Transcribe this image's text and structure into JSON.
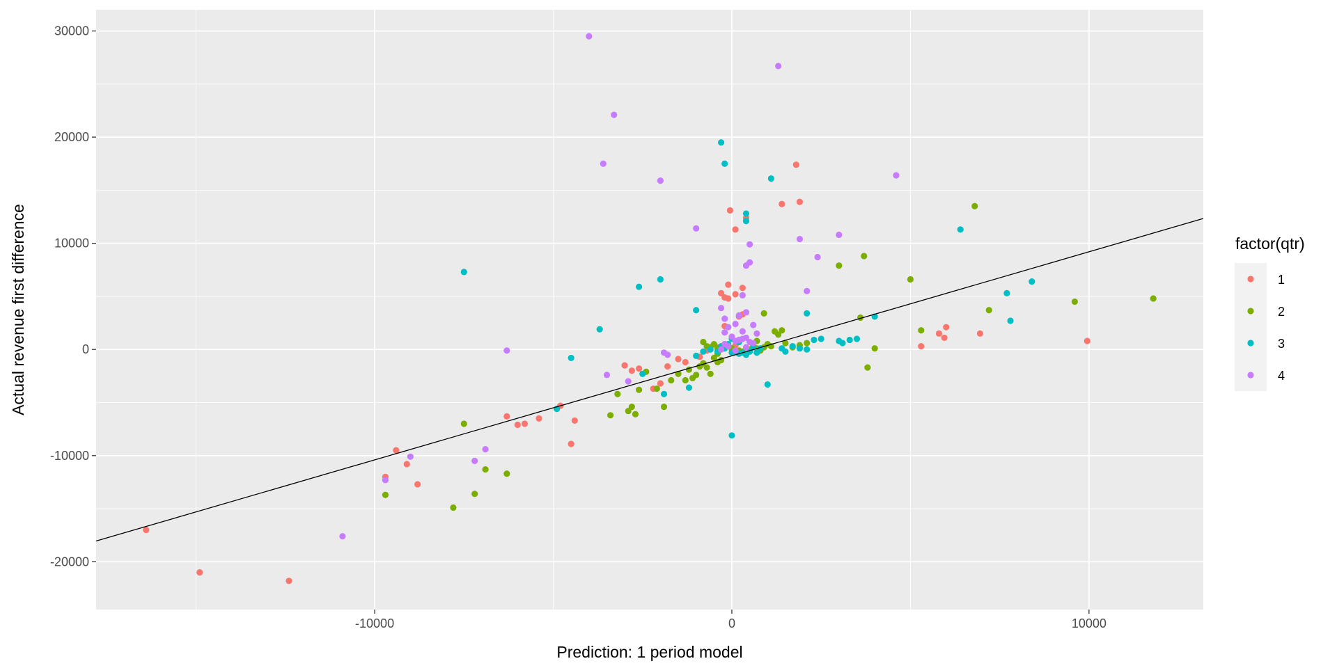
{
  "chart_data": {
    "type": "scatter",
    "title": "",
    "xlabel": "Prediction: 1 period model",
    "ylabel": "Actual revenue first difference",
    "xlim": [
      -17800,
      13200
    ],
    "ylim": [
      -24500,
      32000
    ],
    "x_ticks": [
      -10000,
      0,
      10000
    ],
    "x_tick_labels": [
      "-10000",
      "0",
      "10000"
    ],
    "y_ticks": [
      -20000,
      -10000,
      0,
      10000,
      20000,
      30000
    ],
    "y_tick_labels": [
      "-20000",
      "-10000",
      "0",
      "10000",
      "20000",
      "30000"
    ],
    "grid": true,
    "background": "#ebebeb",
    "fit_line": {
      "slope": 0.98,
      "intercept": -600,
      "color": "#000000"
    },
    "legend": {
      "title": "factor(qtr)",
      "placement": "right"
    },
    "series": [
      {
        "name": "1",
        "color": "#F8766D",
        "points": [
          [
            -16400,
            -17000
          ],
          [
            -14900,
            -21000
          ],
          [
            -12400,
            -21800
          ],
          [
            -9700,
            -12000
          ],
          [
            -9400,
            -9500
          ],
          [
            -9100,
            -10800
          ],
          [
            -8800,
            -12700
          ],
          [
            -6300,
            -6300
          ],
          [
            -6000,
            -7100
          ],
          [
            -5800,
            -7000
          ],
          [
            -5400,
            -6500
          ],
          [
            -4800,
            -5300
          ],
          [
            -4500,
            -8900
          ],
          [
            -4400,
            -6700
          ],
          [
            -3000,
            -1500
          ],
          [
            -2800,
            -2000
          ],
          [
            -2600,
            -1800
          ],
          [
            -2200,
            -3700
          ],
          [
            -2000,
            -3200
          ],
          [
            -1800,
            -1600
          ],
          [
            -1500,
            -900
          ],
          [
            -1300,
            -1200
          ],
          [
            -900,
            -700
          ],
          [
            -700,
            -100
          ],
          [
            -400,
            200
          ],
          [
            -300,
            0
          ],
          [
            -200,
            500
          ],
          [
            -100,
            300
          ],
          [
            0,
            0
          ],
          [
            100,
            400
          ],
          [
            200,
            700
          ],
          [
            -200,
            4900
          ],
          [
            -300,
            5300
          ],
          [
            -100,
            6100
          ],
          [
            100,
            5200
          ],
          [
            300,
            5800
          ],
          [
            200,
            3100
          ],
          [
            300,
            3300
          ],
          [
            -100,
            4800
          ],
          [
            -200,
            2200
          ],
          [
            -50,
            13100
          ],
          [
            100,
            11300
          ],
          [
            400,
            12400
          ],
          [
            1400,
            13700
          ],
          [
            1800,
            17400
          ],
          [
            1900,
            13900
          ],
          [
            5300,
            300
          ],
          [
            5800,
            1500
          ],
          [
            5950,
            1100
          ],
          [
            6000,
            2100
          ],
          [
            6950,
            1500
          ],
          [
            9950,
            800
          ]
        ]
      },
      {
        "name": "2",
        "color": "#7CAE00",
        "points": [
          [
            -9700,
            -13700
          ],
          [
            -7800,
            -14900
          ],
          [
            -7500,
            -7000
          ],
          [
            -7200,
            -13600
          ],
          [
            -6900,
            -11300
          ],
          [
            -6300,
            -11700
          ],
          [
            -3400,
            -6200
          ],
          [
            -3200,
            -4200
          ],
          [
            -2900,
            -5800
          ],
          [
            -2800,
            -5400
          ],
          [
            -2700,
            -6100
          ],
          [
            -2600,
            -3800
          ],
          [
            -2400,
            -2100
          ],
          [
            -2100,
            -3700
          ],
          [
            -1900,
            -5400
          ],
          [
            -1700,
            -2900
          ],
          [
            -1500,
            -2300
          ],
          [
            -1300,
            -2900
          ],
          [
            -1200,
            -1900
          ],
          [
            -1100,
            -2700
          ],
          [
            -1000,
            -2400
          ],
          [
            -900,
            -1600
          ],
          [
            -800,
            -1300
          ],
          [
            -700,
            -1700
          ],
          [
            -600,
            -2300
          ],
          [
            -500,
            -800
          ],
          [
            -400,
            -1200
          ],
          [
            -300,
            -1000
          ],
          [
            -800,
            700
          ],
          [
            -700,
            300
          ],
          [
            -600,
            200
          ],
          [
            -500,
            500
          ],
          [
            -400,
            100
          ],
          [
            -200,
            200
          ],
          [
            0,
            100
          ],
          [
            200,
            -100
          ],
          [
            300,
            -200
          ],
          [
            500,
            0
          ],
          [
            600,
            300
          ],
          [
            700,
            100
          ],
          [
            800,
            -100
          ],
          [
            900,
            200
          ],
          [
            1000,
            500
          ],
          [
            1100,
            300
          ],
          [
            1200,
            1700
          ],
          [
            1300,
            1400
          ],
          [
            1400,
            1800
          ],
          [
            1500,
            600
          ],
          [
            1700,
            200
          ],
          [
            1900,
            400
          ],
          [
            2100,
            600
          ],
          [
            900,
            3400
          ],
          [
            3000,
            7900
          ],
          [
            3600,
            3000
          ],
          [
            3700,
            8800
          ],
          [
            3800,
            -1700
          ],
          [
            4000,
            100
          ],
          [
            5000,
            6600
          ],
          [
            5300,
            1800
          ],
          [
            6800,
            13500
          ],
          [
            7200,
            3700
          ],
          [
            9600,
            4500
          ],
          [
            11800,
            4800
          ],
          [
            -400,
            -400
          ],
          [
            700,
            800
          ]
        ]
      },
      {
        "name": "3",
        "color": "#00BFC4",
        "points": [
          [
            -7500,
            7300
          ],
          [
            -4900,
            -5600
          ],
          [
            -4500,
            -800
          ],
          [
            -3700,
            1900
          ],
          [
            -2600,
            5900
          ],
          [
            -2000,
            6600
          ],
          [
            -1900,
            -4200
          ],
          [
            -1200,
            -3600
          ],
          [
            -1000,
            -600
          ],
          [
            -800,
            -200
          ],
          [
            -600,
            0
          ],
          [
            -400,
            -200
          ],
          [
            -300,
            300
          ],
          [
            -200,
            100
          ],
          [
            -100,
            500
          ],
          [
            0,
            -300
          ],
          [
            100,
            -200
          ],
          [
            200,
            -400
          ],
          [
            300,
            -300
          ],
          [
            400,
            -500
          ],
          [
            500,
            -200
          ],
          [
            600,
            200
          ],
          [
            700,
            -300
          ],
          [
            800,
            100
          ],
          [
            -300,
            19500
          ],
          [
            -200,
            17500
          ],
          [
            400,
            12800
          ],
          [
            400,
            12100
          ],
          [
            1100,
            16100
          ],
          [
            -1000,
            3700
          ],
          [
            0,
            -8100
          ],
          [
            1000,
            -3300
          ],
          [
            1400,
            100
          ],
          [
            1500,
            -200
          ],
          [
            1700,
            300
          ],
          [
            1900,
            100
          ],
          [
            2100,
            0
          ],
          [
            2300,
            900
          ],
          [
            2500,
            1000
          ],
          [
            2100,
            3400
          ],
          [
            3000,
            800
          ],
          [
            3100,
            600
          ],
          [
            3300,
            900
          ],
          [
            3500,
            1000
          ],
          [
            4000,
            3100
          ],
          [
            6400,
            11300
          ],
          [
            7700,
            5300
          ],
          [
            7800,
            2700
          ],
          [
            8400,
            6400
          ],
          [
            -2500,
            -2300
          ],
          [
            0,
            1000
          ],
          [
            200,
            700
          ]
        ]
      },
      {
        "name": "4",
        "color": "#C77CFF",
        "points": [
          [
            -4000,
            29500
          ],
          [
            -3600,
            17500
          ],
          [
            -3300,
            22100
          ],
          [
            -2000,
            15900
          ],
          [
            -1000,
            11400
          ],
          [
            1300,
            26700
          ],
          [
            4600,
            16400
          ],
          [
            3000,
            10800
          ],
          [
            2400,
            8700
          ],
          [
            1900,
            10400
          ],
          [
            2100,
            5500
          ],
          [
            500,
            9900
          ],
          [
            400,
            7900
          ],
          [
            500,
            8200
          ],
          [
            300,
            5100
          ],
          [
            -300,
            3900
          ],
          [
            200,
            3200
          ],
          [
            400,
            3500
          ],
          [
            600,
            2300
          ],
          [
            700,
            1500
          ],
          [
            100,
            2400
          ],
          [
            -100,
            2100
          ],
          [
            -200,
            1600
          ],
          [
            0,
            1200
          ],
          [
            100,
            800
          ],
          [
            200,
            900
          ],
          [
            300,
            1000
          ],
          [
            400,
            1100
          ],
          [
            500,
            700
          ],
          [
            600,
            600
          ],
          [
            -100,
            300
          ],
          [
            -300,
            0
          ],
          [
            -200,
            500
          ],
          [
            100,
            -100
          ],
          [
            400,
            200
          ],
          [
            -6300,
            -100
          ],
          [
            -6900,
            -9400
          ],
          [
            -7200,
            -10500
          ],
          [
            -3500,
            -2400
          ],
          [
            -2900,
            -3000
          ],
          [
            -1800,
            -500
          ],
          [
            -1900,
            -300
          ],
          [
            -9700,
            -12300
          ],
          [
            -9000,
            -10100
          ],
          [
            -10900,
            -17600
          ],
          [
            -200,
            2900
          ],
          [
            300,
            1700
          ]
        ]
      }
    ]
  }
}
